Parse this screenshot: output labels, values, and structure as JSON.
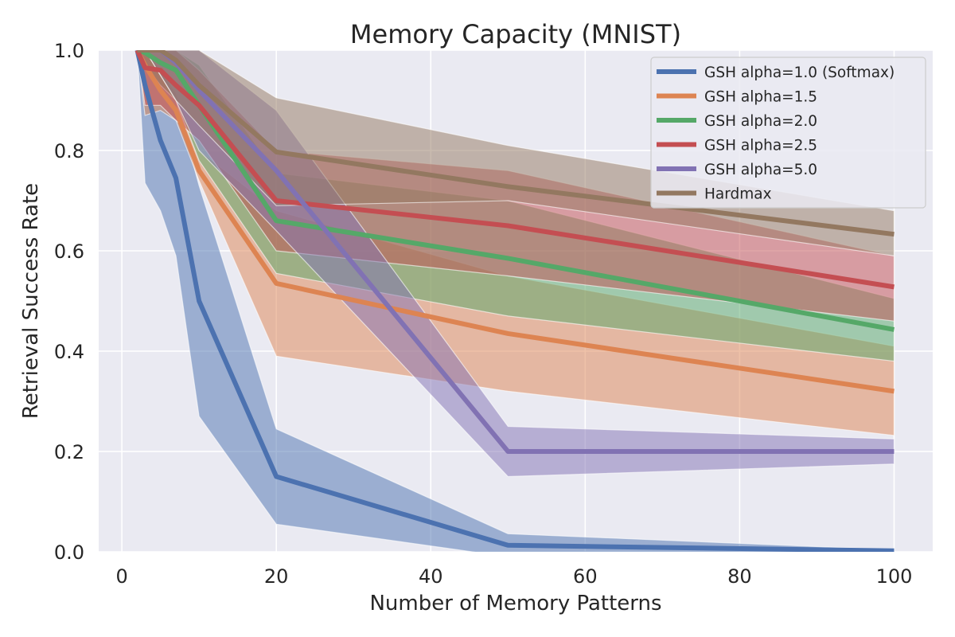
{
  "chart_data": {
    "type": "line",
    "title": "Memory Capacity (MNIST)",
    "xlabel": "Number of Memory Patterns",
    "ylabel": "Retrieval Success Rate",
    "xlim": [
      -3,
      105
    ],
    "ylim": [
      0.0,
      1.0
    ],
    "xticks": [
      0,
      20,
      40,
      60,
      80,
      100
    ],
    "xtick_labels": [
      "0",
      "20",
      "40",
      "60",
      "80",
      "100"
    ],
    "yticks": [
      0.0,
      0.2,
      0.4,
      0.6,
      0.8,
      1.0
    ],
    "ytick_labels": [
      "0.0",
      "0.2",
      "0.4",
      "0.6",
      "0.8",
      "1.0"
    ],
    "grid": true,
    "legend_position": "top-right",
    "series": [
      {
        "name": "GSH alpha=1.0 (Softmax)",
        "color": "#4c72b0",
        "x": [
          2,
          3,
          5,
          7,
          10,
          20,
          50,
          100
        ],
        "y": [
          1.0,
          0.93,
          0.82,
          0.745,
          0.5,
          0.15,
          0.013,
          0.002
        ],
        "lower": [
          1.0,
          0.735,
          0.68,
          0.59,
          0.27,
          0.055,
          -0.01,
          -0.005
        ],
        "upper": [
          1.0,
          1.0,
          0.96,
          0.9,
          0.73,
          0.245,
          0.036,
          0.004
        ]
      },
      {
        "name": "GSH alpha=1.5",
        "color": "#dd8452",
        "x": [
          2,
          3,
          5,
          7,
          10,
          20,
          50,
          100
        ],
        "y": [
          1.0,
          0.97,
          0.92,
          0.88,
          0.76,
          0.535,
          0.435,
          0.32
        ],
        "lower": [
          1.0,
          0.87,
          0.88,
          0.86,
          0.74,
          0.39,
          0.32,
          0.232
        ],
        "upper": [
          1.0,
          1.0,
          0.96,
          0.915,
          0.8,
          0.68,
          0.55,
          0.41
        ]
      },
      {
        "name": "GSH alpha=2.0",
        "color": "#55a868",
        "x": [
          2,
          3,
          5,
          7,
          10,
          20,
          50,
          100
        ],
        "y": [
          1.0,
          0.995,
          0.975,
          0.96,
          0.89,
          0.66,
          0.585,
          0.443
        ],
        "lower": [
          1.0,
          0.97,
          0.93,
          0.9,
          0.78,
          0.555,
          0.47,
          0.38
        ],
        "upper": [
          1.0,
          1.0,
          1.0,
          1.0,
          0.97,
          0.755,
          0.7,
          0.505
        ]
      },
      {
        "name": "GSH alpha=2.5",
        "color": "#c44e52",
        "x": [
          2,
          3,
          5,
          7,
          10,
          20,
          50,
          100
        ],
        "y": [
          1.0,
          0.965,
          0.96,
          0.93,
          0.89,
          0.7,
          0.65,
          0.528
        ],
        "lower": [
          1.0,
          0.89,
          0.89,
          0.86,
          0.82,
          0.6,
          0.55,
          0.46
        ],
        "upper": [
          1.0,
          1.0,
          1.0,
          1.0,
          0.96,
          0.8,
          0.76,
          0.59
        ]
      },
      {
        "name": "GSH alpha=5.0",
        "color": "#8172b3",
        "x": [
          2,
          3,
          5,
          7,
          10,
          20,
          50,
          100
        ],
        "y": [
          1.0,
          1.0,
          1.0,
          0.975,
          0.92,
          0.76,
          0.2,
          0.2
        ],
        "lower": [
          1.0,
          1.0,
          0.95,
          0.9,
          0.8,
          0.64,
          0.15,
          0.175
        ],
        "upper": [
          1.0,
          1.0,
          1.0,
          1.0,
          1.0,
          0.88,
          0.25,
          0.225
        ]
      },
      {
        "name": "Hardmax",
        "color": "#937860",
        "x": [
          2,
          3,
          5,
          7,
          10,
          20,
          50,
          100
        ],
        "y": [
          1.0,
          1.0,
          1.0,
          0.98,
          0.93,
          0.797,
          0.728,
          0.633
        ],
        "lower": [
          1.0,
          1.0,
          0.95,
          0.9,
          0.85,
          0.69,
          0.7,
          0.59
        ],
        "upper": [
          1.0,
          1.0,
          1.0,
          1.0,
          1.0,
          0.905,
          0.81,
          0.68
        ]
      }
    ]
  }
}
